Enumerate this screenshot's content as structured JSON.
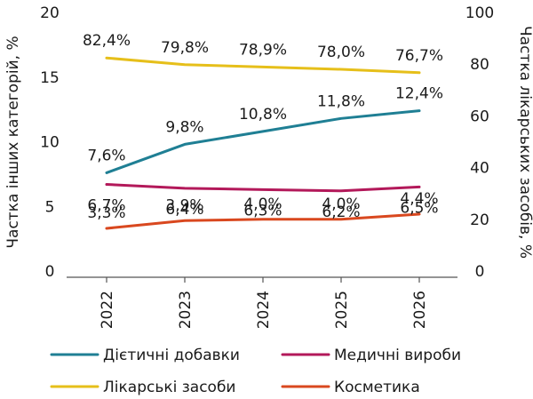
{
  "chart_data": {
    "type": "line",
    "title": "",
    "x": [
      "2022",
      "2023",
      "2024",
      "2025",
      "2026"
    ],
    "y_left": {
      "label": "Частка інших категорій, %",
      "range": [
        0,
        20
      ],
      "ticks": [
        "0",
        "5",
        "10",
        "15",
        "20"
      ]
    },
    "y_right": {
      "label": "Частка лікарських засобів, %",
      "range": [
        0,
        100
      ],
      "ticks": [
        "0",
        "20",
        "40",
        "60",
        "80",
        "100"
      ]
    },
    "grid": false,
    "legend_position": "bottom",
    "series": [
      {
        "name": "Дієтичні добавки",
        "axis": "left",
        "color": "#1f7f94",
        "values": [
          7.6,
          9.8,
          10.8,
          11.8,
          12.4
        ],
        "labels": [
          "7,6%",
          "9,8%",
          "10,8%",
          "11,8%",
          "12,4%"
        ]
      },
      {
        "name": "Медичні вироби",
        "axis": "left",
        "color": "#b3195a",
        "values": [
          6.7,
          6.4,
          6.3,
          6.2,
          6.5
        ],
        "labels": [
          "6,7%",
          "6,4%",
          "6,3%",
          "6,2%",
          "6,5%"
        ]
      },
      {
        "name": "Лікарські засоби",
        "axis": "right",
        "color": "#e6bf1a",
        "values": [
          82.4,
          79.8,
          78.9,
          78.0,
          76.7
        ],
        "labels": [
          "82,4%",
          "79,8%",
          "78,9%",
          "78,0%",
          "76,7%"
        ]
      },
      {
        "name": "Косметика",
        "axis": "left",
        "color": "#d9481f",
        "values": [
          3.3,
          3.9,
          4.0,
          4.0,
          4.4
        ],
        "labels": [
          "3,3%",
          "3,9%",
          "4,0%",
          "4,0%",
          "4,4%"
        ]
      }
    ]
  }
}
